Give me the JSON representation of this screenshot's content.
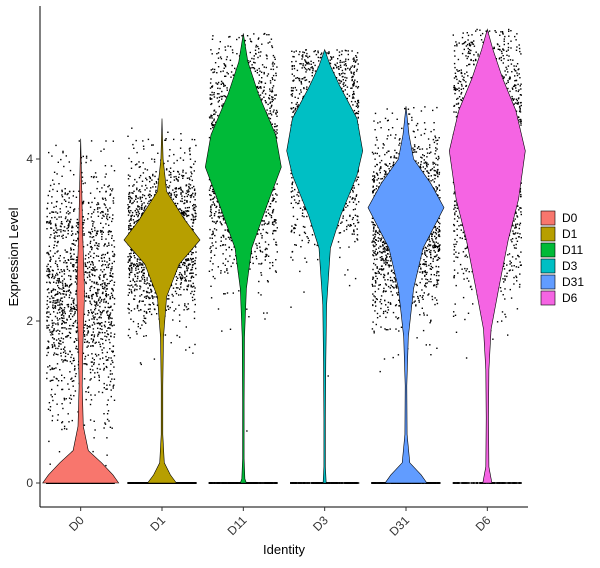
{
  "chart_data": {
    "type": "violin",
    "xlabel": "Identity",
    "ylabel": "Expression Level",
    "ylim": [
      -0.4,
      5.85
    ],
    "yticks": [
      0,
      2,
      4
    ],
    "grid": false,
    "legend_position": "right",
    "categories": [
      "D0",
      "D1",
      "D11",
      "D3",
      "D31",
      "D6"
    ],
    "series": [
      {
        "name": "D0",
        "color": "#F8766D",
        "max": 4.25,
        "zero_fraction": 0.35,
        "center": 2.35,
        "spread": 0.75,
        "density": [
          [
            0.0,
            1.0
          ],
          [
            0.1,
            0.85
          ],
          [
            0.25,
            0.55
          ],
          [
            0.4,
            0.2
          ],
          [
            0.7,
            0.07
          ],
          [
            1.2,
            0.04
          ],
          [
            1.7,
            0.06
          ],
          [
            2.0,
            0.08
          ],
          [
            2.35,
            0.1
          ],
          [
            2.7,
            0.08
          ],
          [
            3.1,
            0.05
          ],
          [
            3.6,
            0.03
          ],
          [
            4.25,
            0.0
          ]
        ]
      },
      {
        "name": "D1",
        "color": "#B79F00",
        "max": 4.5,
        "zero_fraction": 0.3,
        "center": 3.0,
        "spread": 0.5,
        "density": [
          [
            0.0,
            0.38
          ],
          [
            0.1,
            0.22
          ],
          [
            0.25,
            0.06
          ],
          [
            0.6,
            0.02
          ],
          [
            1.2,
            0.02
          ],
          [
            1.8,
            0.04
          ],
          [
            2.3,
            0.12
          ],
          [
            2.7,
            0.45
          ],
          [
            3.0,
            1.0
          ],
          [
            3.25,
            0.6
          ],
          [
            3.6,
            0.12
          ],
          [
            4.0,
            0.03
          ],
          [
            4.5,
            0.0
          ]
        ]
      },
      {
        "name": "D11",
        "color": "#00BA38",
        "max": 5.55,
        "zero_fraction": 0.2,
        "center": 4.0,
        "spread": 0.7,
        "density": [
          [
            0.0,
            0.08
          ],
          [
            0.05,
            0.04
          ],
          [
            0.3,
            0.02
          ],
          [
            1.0,
            0.02
          ],
          [
            1.8,
            0.03
          ],
          [
            2.4,
            0.08
          ],
          [
            2.9,
            0.22
          ],
          [
            3.4,
            0.6
          ],
          [
            3.9,
            1.0
          ],
          [
            4.3,
            0.85
          ],
          [
            4.8,
            0.4
          ],
          [
            5.2,
            0.12
          ],
          [
            5.55,
            0.0
          ]
        ]
      },
      {
        "name": "D3",
        "color": "#00BFC4",
        "max": 5.35,
        "zero_fraction": 0.15,
        "center": 4.2,
        "spread": 0.6,
        "density": [
          [
            0.0,
            0.04
          ],
          [
            0.2,
            0.02
          ],
          [
            0.8,
            0.02
          ],
          [
            1.5,
            0.03
          ],
          [
            2.2,
            0.05
          ],
          [
            2.9,
            0.15
          ],
          [
            3.3,
            0.42
          ],
          [
            3.8,
            0.85
          ],
          [
            4.1,
            1.0
          ],
          [
            4.5,
            0.85
          ],
          [
            4.9,
            0.4
          ],
          [
            5.15,
            0.15
          ],
          [
            5.35,
            0.0
          ]
        ]
      },
      {
        "name": "D31",
        "color": "#619CFF",
        "max": 4.65,
        "zero_fraction": 0.2,
        "center": 3.2,
        "spread": 0.55,
        "density": [
          [
            0.0,
            0.55
          ],
          [
            0.1,
            0.4
          ],
          [
            0.25,
            0.1
          ],
          [
            0.6,
            0.03
          ],
          [
            1.2,
            0.02
          ],
          [
            1.8,
            0.06
          ],
          [
            2.4,
            0.2
          ],
          [
            2.9,
            0.45
          ],
          [
            3.4,
            1.0
          ],
          [
            3.7,
            0.65
          ],
          [
            4.0,
            0.2
          ],
          [
            4.3,
            0.08
          ],
          [
            4.65,
            0.0
          ]
        ]
      },
      {
        "name": "D6",
        "color": "#F564E3",
        "max": 5.6,
        "zero_fraction": 0.1,
        "center": 4.0,
        "spread": 0.8,
        "density": [
          [
            0.0,
            0.12
          ],
          [
            0.2,
            0.04
          ],
          [
            0.8,
            0.03
          ],
          [
            1.4,
            0.04
          ],
          [
            1.9,
            0.1
          ],
          [
            2.4,
            0.3
          ],
          [
            3.0,
            0.55
          ],
          [
            3.5,
            0.82
          ],
          [
            4.1,
            1.0
          ],
          [
            4.6,
            0.75
          ],
          [
            5.0,
            0.4
          ],
          [
            5.35,
            0.15
          ],
          [
            5.6,
            0.0
          ]
        ]
      }
    ]
  }
}
